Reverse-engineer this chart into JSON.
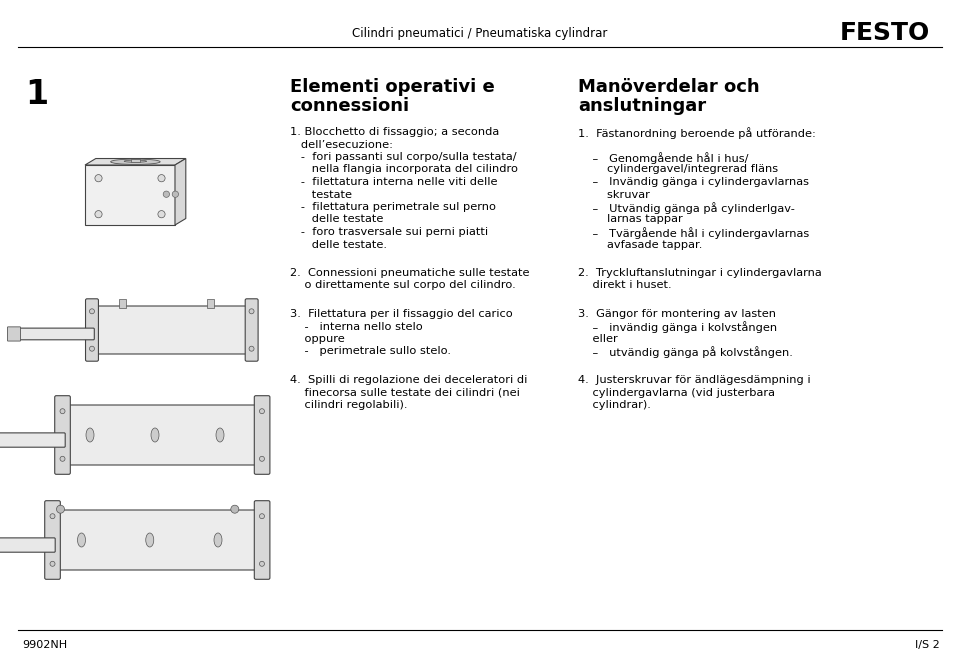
{
  "bg_color": "#ffffff",
  "header_text": "Cilindri pneumatici / Pneumatiska cylindrar",
  "festo_text": "FESTO",
  "footer_left": "9902NH",
  "footer_right": "I/S 2",
  "page_num": "1",
  "col1_title_line1": "Elementi operativi e",
  "col1_title_line2": "connessioni",
  "col2_title_line1": "Manöverdelar och",
  "col2_title_line2": "anslutningar",
  "col1_blocks": [
    {
      "lines": [
        "1. Blocchetto di fissaggio; a seconda",
        "   dell’esecuzione:",
        "   -  fori passanti sul corpo/sulla testata/",
        "      nella flangia incorporata del cilindro",
        "   -  filettatura interna nelle viti delle",
        "      testate",
        "   -  filettatura perimetrale sul perno",
        "      delle testate",
        "   -  foro trasversale sui perni piatti",
        "      delle testate."
      ]
    },
    {
      "lines": [
        "2.  Connessioni pneumatiche sulle testate",
        "    o direttamente sul corpo del cilindro."
      ]
    },
    {
      "lines": [
        "3.  Filettatura per il fissaggio del carico",
        "    -   interna nello stelo",
        "    oppure",
        "    -   perimetrale sullo stelo."
      ]
    },
    {
      "lines": [
        "4.  Spilli di regolazione dei deceleratori di",
        "    finecorsa sulle testate dei cilindri (nei",
        "    cilindri regolabili)."
      ]
    }
  ],
  "col2_blocks": [
    {
      "lines": [
        "1.  Fästanordning beroende på utförande:",
        "",
        "    –   Genomgående hål i hus/",
        "        cylindergavel/integrerad fläns",
        "    –   Invändig gänga i cylindergavlarnas",
        "        skruvar",
        "    –   Utvändig gänga på cylinderlgav-",
        "        larnas tappar",
        "    –   Tvärgående hål i cylindergavlarnas",
        "        avfasade tappar."
      ]
    },
    {
      "lines": [
        "2.  Tryckluftanslutningar i cylindergavlarna",
        "    direkt i huset."
      ]
    },
    {
      "lines": [
        "3.  Gängor för montering av lasten",
        "    –   invändig gänga i kolvstången",
        "    eller",
        "    –   utvändig gänga på kolvstången."
      ]
    },
    {
      "lines": [
        "4.  Justerskruvar för ändlägesdämpning i",
        "    cylindergavlarna (vid justerbara",
        "    cylindrar)."
      ]
    }
  ]
}
